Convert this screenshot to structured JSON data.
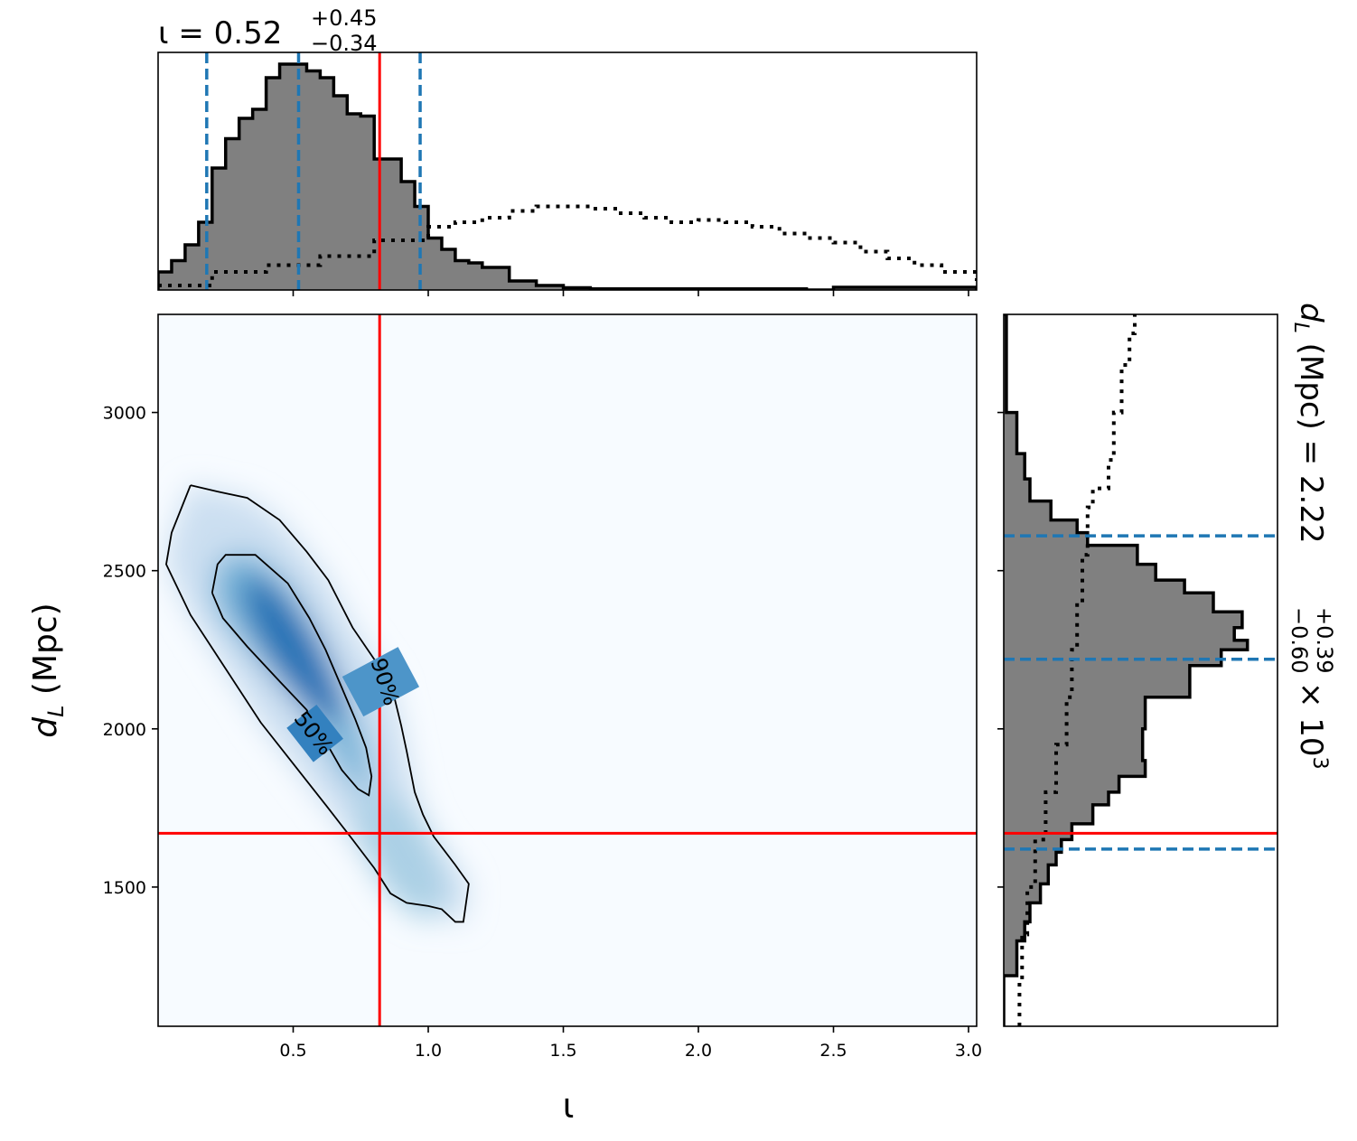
{
  "chart_data": [
    {
      "type": "histogram",
      "panel": "top-marginal",
      "title": {
        "param": "ι",
        "median": "0.52",
        "upper": "+0.45",
        "lower": "−0.34"
      },
      "xlim": [
        0.0,
        3.03
      ],
      "bins_x": [
        0.0,
        0.05,
        0.1,
        0.15,
        0.2,
        0.25,
        0.3,
        0.35,
        0.4,
        0.45,
        0.5,
        0.55,
        0.6,
        0.65,
        0.7,
        0.75,
        0.8,
        0.85,
        0.9,
        0.95,
        1.0,
        1.05,
        1.1,
        1.15,
        1.2,
        1.3,
        1.4,
        1.5,
        1.6,
        2.4,
        2.5,
        3.03
      ],
      "posterior_counts": [
        0.08,
        0.13,
        0.2,
        0.3,
        0.54,
        0.67,
        0.76,
        0.8,
        0.94,
        1.0,
        1.0,
        0.97,
        0.94,
        0.86,
        0.78,
        0.77,
        0.58,
        0.58,
        0.48,
        0.37,
        0.23,
        0.18,
        0.13,
        0.12,
        0.1,
        0.04,
        0.02,
        0.01,
        0.005,
        0.0,
        0.012,
        0.0
      ],
      "prior_x": [
        0.0,
        0.2,
        0.4,
        0.6,
        0.8,
        1.0,
        1.1,
        1.2,
        1.3,
        1.4,
        1.5,
        1.6,
        1.7,
        1.8,
        1.9,
        2.0,
        2.1,
        2.2,
        2.3,
        2.4,
        2.5,
        2.6,
        2.7,
        2.8,
        2.9,
        3.03
      ],
      "prior_values": [
        0.02,
        0.08,
        0.11,
        0.15,
        0.22,
        0.28,
        0.3,
        0.32,
        0.35,
        0.37,
        0.37,
        0.36,
        0.34,
        0.32,
        0.3,
        0.31,
        0.3,
        0.28,
        0.25,
        0.23,
        0.21,
        0.17,
        0.14,
        0.11,
        0.08,
        0.04
      ],
      "quantile_lines": [
        0.18,
        0.52,
        0.97
      ],
      "truth": 0.82
    },
    {
      "type": "heatmap",
      "panel": "joint",
      "xlabel": "ι",
      "ylabel": "d_L (Mpc)",
      "xlim": [
        0.0,
        3.03
      ],
      "ylim": [
        1060,
        3310
      ],
      "xticks": [
        "0.5",
        "1.0",
        "1.5",
        "2.0",
        "2.5",
        "3.0"
      ],
      "yticks": [
        "1500",
        "2000",
        "2500",
        "3000"
      ],
      "contour_labels": [
        "50%",
        "90%"
      ],
      "contour_90": [
        [
          0.12,
          2770
        ],
        [
          0.22,
          2750
        ],
        [
          0.33,
          2730
        ],
        [
          0.45,
          2660
        ],
        [
          0.55,
          2560
        ],
        [
          0.63,
          2470
        ],
        [
          0.72,
          2320
        ],
        [
          0.8,
          2220
        ],
        [
          0.86,
          2150
        ],
        [
          0.9,
          2010
        ],
        [
          0.92,
          1930
        ],
        [
          0.95,
          1800
        ],
        [
          0.98,
          1730
        ],
        [
          1.02,
          1660
        ],
        [
          1.1,
          1570
        ],
        [
          1.15,
          1510
        ],
        [
          1.14,
          1450
        ],
        [
          1.13,
          1390
        ],
        [
          1.1,
          1390
        ],
        [
          1.05,
          1430
        ],
        [
          1.0,
          1440
        ],
        [
          0.92,
          1450
        ],
        [
          0.86,
          1480
        ],
        [
          0.8,
          1560
        ],
        [
          0.72,
          1650
        ],
        [
          0.62,
          1760
        ],
        [
          0.5,
          1890
        ],
        [
          0.38,
          2020
        ],
        [
          0.25,
          2190
        ],
        [
          0.12,
          2360
        ],
        [
          0.03,
          2520
        ],
        [
          0.05,
          2620
        ],
        [
          0.12,
          2770
        ]
      ],
      "contour_50": [
        [
          0.2,
          2430
        ],
        [
          0.22,
          2520
        ],
        [
          0.25,
          2550
        ],
        [
          0.36,
          2550
        ],
        [
          0.48,
          2460
        ],
        [
          0.56,
          2350
        ],
        [
          0.62,
          2250
        ],
        [
          0.68,
          2130
        ],
        [
          0.73,
          2030
        ],
        [
          0.77,
          1940
        ],
        [
          0.79,
          1850
        ],
        [
          0.78,
          1790
        ],
        [
          0.74,
          1810
        ],
        [
          0.68,
          1870
        ],
        [
          0.62,
          1960
        ],
        [
          0.55,
          2060
        ],
        [
          0.45,
          2150
        ],
        [
          0.33,
          2260
        ],
        [
          0.24,
          2350
        ],
        [
          0.2,
          2430
        ]
      ],
      "density_peak": [
        0.5,
        2250
      ],
      "truth": [
        0.82,
        1670
      ]
    },
    {
      "type": "histogram",
      "panel": "right-marginal",
      "title": {
        "param": "d_L (Mpc)",
        "median": "2.22",
        "upper": "+0.39",
        "lower": "−0.60",
        "scale": "× 10",
        "exp": "3"
      },
      "ylim": [
        1060,
        3310
      ],
      "bins_y": [
        1060,
        1220,
        1330,
        1390,
        1450,
        1510,
        1570,
        1610,
        1650,
        1700,
        1760,
        1800,
        1850,
        1900,
        2000,
        2100,
        2200,
        2250,
        2280,
        2320,
        2370,
        2430,
        2470,
        2520,
        2580,
        2620,
        2660,
        2720,
        2790,
        2870,
        3000,
        3310
      ],
      "posterior_counts": [
        0.0,
        0.05,
        0.08,
        0.1,
        0.14,
        0.17,
        0.2,
        0.22,
        0.26,
        0.34,
        0.4,
        0.44,
        0.54,
        0.53,
        0.54,
        0.71,
        0.83,
        0.93,
        0.88,
        0.91,
        0.8,
        0.69,
        0.58,
        0.51,
        0.32,
        0.28,
        0.18,
        0.1,
        0.08,
        0.05,
        0.01
      ],
      "prior_y": [
        1060,
        1200,
        1350,
        1500,
        1650,
        1800,
        1950,
        2100,
        2250,
        2400,
        2550,
        2700,
        2760,
        2850,
        3000,
        3150,
        3250,
        3310
      ],
      "prior_values": [
        0.06,
        0.07,
        0.09,
        0.12,
        0.16,
        0.2,
        0.24,
        0.26,
        0.28,
        0.3,
        0.32,
        0.34,
        0.4,
        0.42,
        0.45,
        0.48,
        0.5,
        0.52
      ],
      "quantile_lines": [
        1620,
        2220,
        2610
      ],
      "truth": 1670
    }
  ]
}
